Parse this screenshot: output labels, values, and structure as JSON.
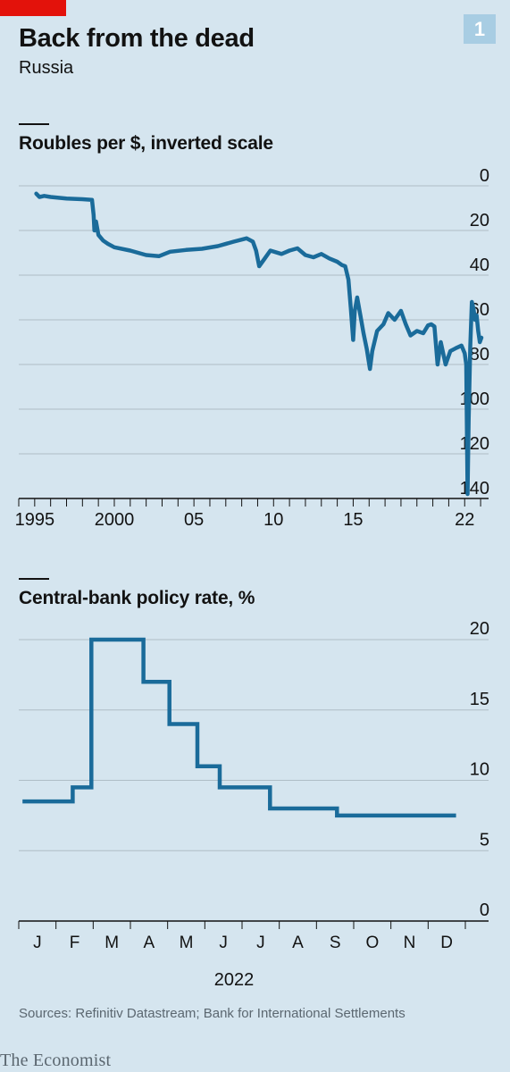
{
  "header": {
    "chart_number": "1",
    "title": "Back from the dead",
    "subtitle": "Russia"
  },
  "footer": {
    "source": "Sources: Refinitiv Datastream; Bank for International Settlements",
    "logo": "The Economist"
  },
  "colors": {
    "line": "#1a6b9a",
    "red_tag": "#e3120b",
    "background": "#d5e5ef"
  },
  "chart_data": [
    {
      "type": "line",
      "title": "Roubles per $, inverted scale",
      "y_inverted": true,
      "ylim": [
        0,
        140
      ],
      "yticks": [
        "0",
        "20",
        "40",
        "60",
        "80",
        "100",
        "120",
        "140"
      ],
      "xlim": [
        1994,
        2023.5
      ],
      "xticks": [
        {
          "value": 1995,
          "label": "1995"
        },
        {
          "value": 2000,
          "label": "2000"
        },
        {
          "value": 2005,
          "label": "05"
        },
        {
          "value": 2010,
          "label": "10"
        },
        {
          "value": 2015,
          "label": "15"
        },
        {
          "value": 2022,
          "label": "22"
        }
      ],
      "x_minor_ticks": [
        1994,
        1995,
        1996,
        1997,
        1998,
        1999,
        2000,
        2001,
        2002,
        2003,
        2004,
        2005,
        2006,
        2007,
        2008,
        2009,
        2010,
        2011,
        2012,
        2013,
        2014,
        2015,
        2016,
        2017,
        2018,
        2019,
        2020,
        2021,
        2022,
        2023
      ],
      "grid": true,
      "series": [
        {
          "points": [
            [
              1995.1,
              3.5
            ],
            [
              1995.3,
              5.0
            ],
            [
              1995.6,
              4.5
            ],
            [
              1996.0,
              5.0
            ],
            [
              1997.0,
              5.7
            ],
            [
              1998.0,
              6.0
            ],
            [
              1998.6,
              6.3
            ],
            [
              1998.7,
              13.0
            ],
            [
              1998.75,
              20.0
            ],
            [
              1998.85,
              16.0
            ],
            [
              1999.0,
              22.0
            ],
            [
              1999.3,
              24.5
            ],
            [
              1999.6,
              26.0
            ],
            [
              2000.0,
              27.5
            ],
            [
              2001.0,
              29.0
            ],
            [
              2002.0,
              31.0
            ],
            [
              2002.8,
              31.5
            ],
            [
              2003.5,
              29.5
            ],
            [
              2004.5,
              28.7
            ],
            [
              2005.5,
              28.2
            ],
            [
              2006.5,
              27.0
            ],
            [
              2007.5,
              25.0
            ],
            [
              2008.3,
              23.5
            ],
            [
              2008.7,
              25.0
            ],
            [
              2008.9,
              29.0
            ],
            [
              2009.1,
              36.0
            ],
            [
              2009.4,
              33.0
            ],
            [
              2009.8,
              29.0
            ],
            [
              2010.5,
              30.5
            ],
            [
              2011.0,
              29.0
            ],
            [
              2011.5,
              28.0
            ],
            [
              2012.0,
              31.0
            ],
            [
              2012.5,
              32.0
            ],
            [
              2013.0,
              30.5
            ],
            [
              2013.5,
              32.5
            ],
            [
              2014.0,
              34.0
            ],
            [
              2014.3,
              35.5
            ],
            [
              2014.5,
              36.0
            ],
            [
              2014.7,
              42.0
            ],
            [
              2014.85,
              55.0
            ],
            [
              2015.0,
              69.0
            ],
            [
              2015.1,
              56.0
            ],
            [
              2015.25,
              50.0
            ],
            [
              2015.45,
              58.0
            ],
            [
              2015.65,
              66.0
            ],
            [
              2015.85,
              73.0
            ],
            [
              2016.05,
              82.0
            ],
            [
              2016.2,
              74.0
            ],
            [
              2016.5,
              65.0
            ],
            [
              2016.9,
              62.0
            ],
            [
              2017.2,
              57.0
            ],
            [
              2017.6,
              60.0
            ],
            [
              2018.0,
              56.0
            ],
            [
              2018.3,
              62.0
            ],
            [
              2018.6,
              67.0
            ],
            [
              2019.0,
              65.0
            ],
            [
              2019.4,
              66.0
            ],
            [
              2019.7,
              62.5
            ],
            [
              2019.9,
              62.0
            ],
            [
              2020.1,
              63.0
            ],
            [
              2020.3,
              80.0
            ],
            [
              2020.5,
              70.0
            ],
            [
              2020.8,
              80.0
            ],
            [
              2021.1,
              74.0
            ],
            [
              2021.5,
              72.5
            ],
            [
              2021.8,
              71.5
            ],
            [
              2022.0,
              75.0
            ],
            [
              2022.1,
              80.0
            ],
            [
              2022.18,
              138.0
            ],
            [
              2022.25,
              105.0
            ],
            [
              2022.35,
              72.0
            ],
            [
              2022.45,
              52.0
            ],
            [
              2022.55,
              55.0
            ],
            [
              2022.65,
              60.0
            ],
            [
              2022.75,
              58.0
            ],
            [
              2022.85,
              65.0
            ],
            [
              2022.95,
              70.0
            ],
            [
              2023.05,
              68.0
            ]
          ]
        }
      ]
    },
    {
      "type": "line",
      "step": true,
      "title": "Central-bank policy rate, %",
      "ylim": [
        0,
        20
      ],
      "yticks": [
        "0",
        "5",
        "10",
        "15",
        "20"
      ],
      "xlim": [
        0,
        12
      ],
      "xticks": [
        {
          "value": 0.5,
          "label": "J"
        },
        {
          "value": 1.5,
          "label": "F"
        },
        {
          "value": 2.5,
          "label": "M"
        },
        {
          "value": 3.5,
          "label": "A"
        },
        {
          "value": 4.5,
          "label": "M"
        },
        {
          "value": 5.5,
          "label": "J"
        },
        {
          "value": 6.5,
          "label": "J"
        },
        {
          "value": 7.5,
          "label": "A"
        },
        {
          "value": 8.5,
          "label": "S"
        },
        {
          "value": 9.5,
          "label": "O"
        },
        {
          "value": 10.5,
          "label": "N"
        },
        {
          "value": 11.5,
          "label": "D"
        }
      ],
      "xlabel": "2022",
      "grid": true,
      "series": [
        {
          "steps": [
            [
              0.1,
              8.5
            ],
            [
              1.45,
              9.5
            ],
            [
              1.95,
              20.0
            ],
            [
              3.35,
              17.0
            ],
            [
              4.05,
              14.0
            ],
            [
              4.8,
              11.0
            ],
            [
              5.4,
              9.5
            ],
            [
              6.75,
              8.0
            ],
            [
              8.55,
              7.5
            ],
            [
              11.75,
              7.5
            ]
          ]
        }
      ]
    }
  ]
}
